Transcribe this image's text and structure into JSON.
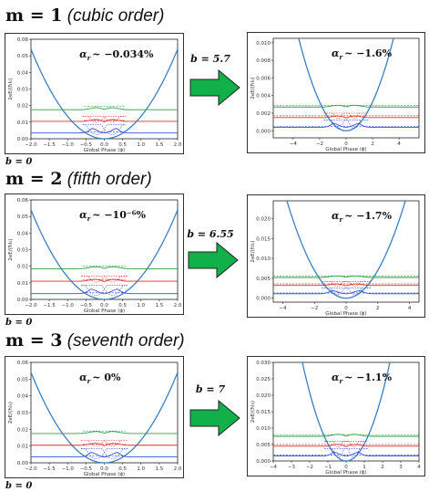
{
  "rows": [
    {
      "title_m": "m = 1",
      "title_order": "(cubic order)",
      "b_left": "b = 0",
      "b_right": "b = 5.7",
      "left": {
        "alpha": "α",
        "alpha_sub": "r",
        "alpha_value": "~ −0.034%",
        "ylabel": "2eE/(ħI₀)",
        "xlabel": "Global Phase (ϕ)",
        "xlim": [
          -2.0,
          2.0
        ],
        "ylim": [
          0.0,
          0.06
        ],
        "xticks": [
          "−2.0",
          "−1.5",
          "−1.0",
          "−0.5",
          "0.0",
          "0.5",
          "1.0",
          "1.5",
          "2.0"
        ],
        "yticks": [
          "0.00",
          "0.01",
          "0.02",
          "0.03",
          "0.04",
          "0.05",
          "0.06"
        ]
      },
      "right": {
        "alpha": "α",
        "alpha_sub": "r",
        "alpha_value": "~ −1.6%",
        "ylabel": "2eE/(ħI₀)",
        "xlabel": "Global Phase (ϕ)",
        "xlim": [
          -5.5,
          5.5
        ],
        "ylim": [
          -0.0008,
          0.0105
        ],
        "xticks": [
          "−4",
          "−2",
          "0",
          "2",
          "4"
        ],
        "yticks": [
          "0.000",
          "0.002",
          "0.004",
          "0.006",
          "0.008",
          "0.010"
        ]
      }
    },
    {
      "title_m": "m = 2",
      "title_order": "(fifth order)",
      "b_left": "b = 0",
      "b_right": "b = 6.55",
      "left": {
        "alpha": "α",
        "alpha_sub": "r",
        "alpha_value": "~ −10⁻⁶%",
        "ylabel": "2eE/(ħI₀)",
        "xlabel": "Global Phase (ϕ)",
        "xlim": [
          -2.0,
          2.0
        ],
        "ylim": [
          0.0,
          0.06
        ],
        "xticks": [
          "−2.0",
          "−1.5",
          "−1.0",
          "−0.5",
          "0.0",
          "0.5",
          "1.0",
          "1.5",
          "2.0"
        ],
        "yticks": [
          "0.00",
          "0.01",
          "0.02",
          "0.03",
          "0.04",
          "0.05",
          "0.06"
        ]
      },
      "right": {
        "alpha": "α",
        "alpha_sub": "r",
        "alpha_value": "~ −1.7%",
        "ylabel": "2eE/(ħI₀)",
        "xlabel": "Global Phase (ϕ)",
        "xlim": [
          -4.6,
          4.6
        ],
        "ylim": [
          -0.001,
          0.0245
        ],
        "xticks": [
          "−4",
          "−2",
          "0",
          "2",
          "4"
        ],
        "yticks": [
          "0.000",
          "0.005",
          "0.010",
          "0.015",
          "0.020"
        ]
      }
    },
    {
      "title_m": "m = 3",
      "title_order": "(seventh order)",
      "b_left": "b = 0",
      "b_right": "b = 7",
      "left": {
        "alpha": "α",
        "alpha_sub": "r",
        "alpha_value": "~ 0%",
        "ylabel": "2eE/(ħI₀)",
        "xlabel": "Global Phase (ϕ)",
        "xlim": [
          -2.0,
          2.0
        ],
        "ylim": [
          0.0,
          0.06
        ],
        "xticks": [
          "−2.0",
          "−1.5",
          "−1.0",
          "−0.5",
          "0.0",
          "0.5",
          "1.0",
          "1.5",
          "2.0"
        ],
        "yticks": [
          "0.00",
          "0.01",
          "0.02",
          "0.03",
          "0.04",
          "0.05",
          "0.06"
        ]
      },
      "right": {
        "alpha": "α",
        "alpha_sub": "r",
        "alpha_value": "~ −1.1%",
        "ylabel": "2eE/(ħI₀)",
        "xlabel": "Global Phase (ϕ)",
        "xlim": [
          -4,
          4
        ],
        "ylim": [
          0.0,
          0.03
        ],
        "xticks": [
          "−4",
          "−3",
          "−2",
          "−1",
          "0",
          "1",
          "2",
          "3",
          "4"
        ],
        "yticks": [
          "0.000",
          "0.005",
          "0.010",
          "0.015",
          "0.020",
          "0.025",
          "0.030"
        ]
      }
    }
  ],
  "colors": {
    "parabola": "#3b7fbf",
    "green": "#2f9e44",
    "red": "#e03131",
    "blue": "#3b4fd8",
    "arrow": "#12b04a",
    "arrow_edge": "#222222"
  }
}
